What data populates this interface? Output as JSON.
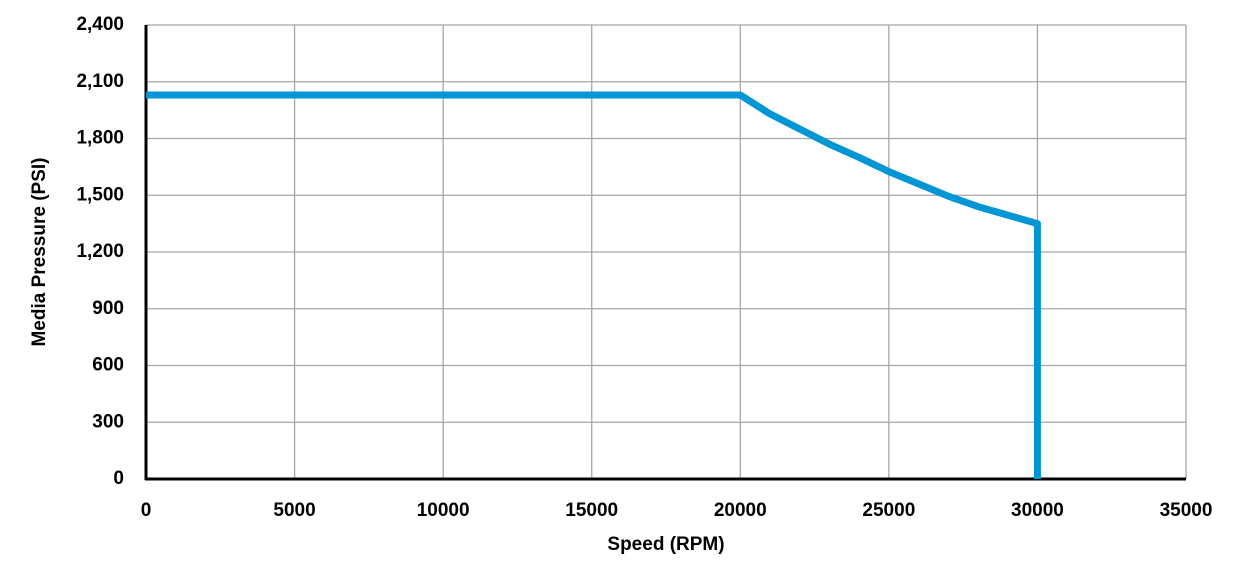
{
  "chart_data": {
    "type": "line",
    "x_label": "Speed (RPM)",
    "y_label": "Media Pressure (PSI)",
    "series": [
      {
        "name": "Media Pressure",
        "color": "#0096d6",
        "x": [
          0,
          20000,
          21000,
          22000,
          23000,
          24000,
          25000,
          26000,
          27000,
          28000,
          29000,
          30000,
          30000
        ],
        "values": [
          2030,
          2030,
          1930,
          1850,
          1770,
          1700,
          1625,
          1560,
          1495,
          1440,
          1395,
          1350,
          0
        ]
      }
    ],
    "xlim": [
      0,
      35000
    ],
    "xticks": [
      0,
      5000,
      10000,
      15000,
      20000,
      25000,
      30000,
      35000
    ],
    "ylim": [
      0,
      2400
    ],
    "yticks": [
      0,
      300,
      600,
      900,
      {
        "value": 1200,
        "label": "1,200"
      },
      {
        "value": 1500,
        "label": "1,500"
      },
      {
        "value": 1800,
        "label": "1,800"
      },
      {
        "value": 2100,
        "label": "2,100"
      },
      {
        "value": 2400,
        "label": "2,400"
      }
    ],
    "grid": true
  }
}
